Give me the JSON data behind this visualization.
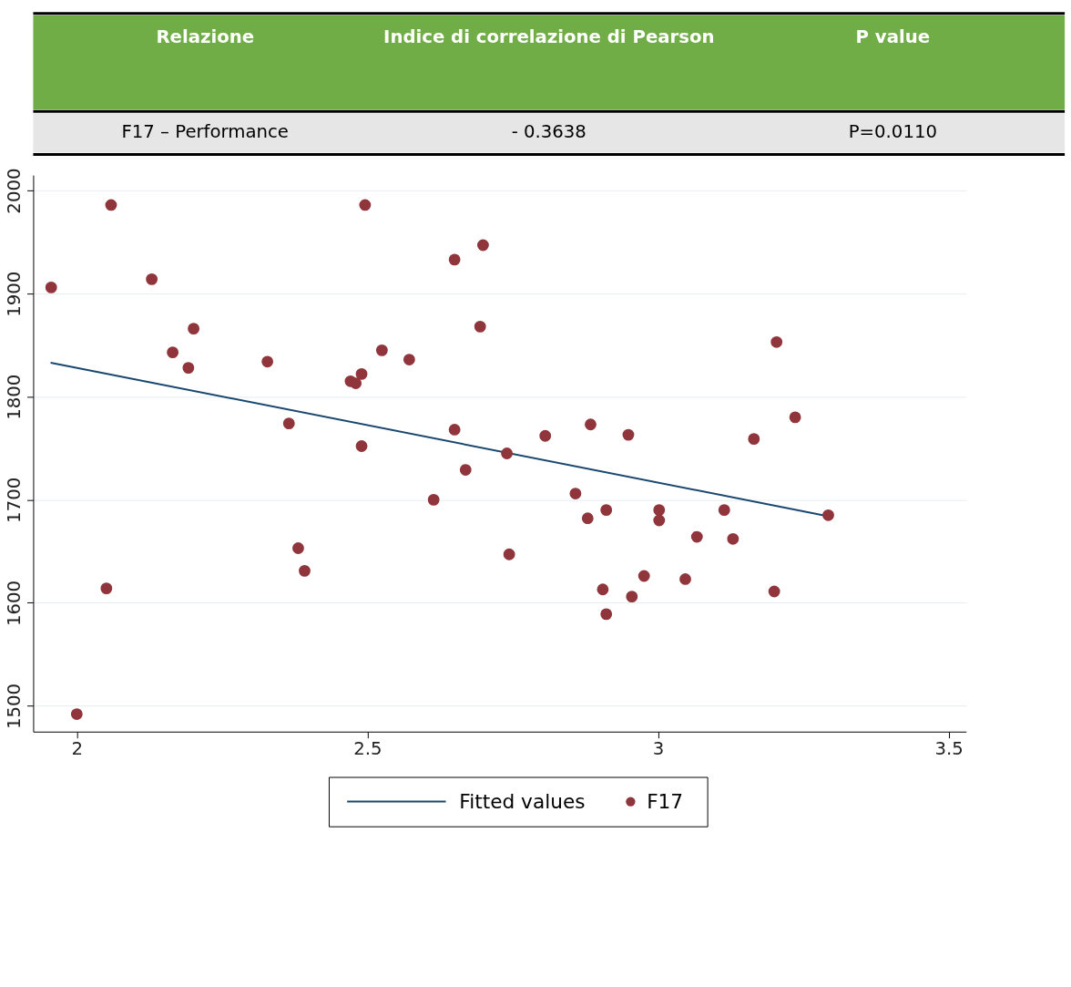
{
  "chart_data": {
    "type": "scatter",
    "annotations": [
      "Relazione",
      "Indice di correlazione di Pearson",
      "P value",
      "F17 – Performance",
      "- 0.3638",
      "P=0.0110"
    ],
    "xlim": [
      1.925,
      3.53
    ],
    "ylim": [
      1475,
      2015
    ],
    "xticks": [
      2,
      2.5,
      3,
      3.5
    ],
    "yticks": [
      1500,
      1600,
      1700,
      1800,
      1900,
      2000
    ],
    "grid": "y",
    "legend": "bottom",
    "series": [
      {
        "name": "Fitted values",
        "type": "line",
        "color": "#1a476f",
        "x": [
          1.955,
          3.293
        ],
        "values": [
          1833,
          1684
        ]
      },
      {
        "name": "F17",
        "color": "#90353b",
        "marker": "circle",
        "x": [
          1.956,
          2.059,
          2.129,
          2.201,
          2.165,
          2.192,
          2.328,
          2.365,
          2.496,
          2.65,
          2.471,
          2.48,
          2.49,
          2.525,
          2.572,
          2.49,
          2.65,
          2.669,
          2.614,
          2.699,
          2.694,
          2.74,
          2.806,
          2.884,
          2.949,
          3.165,
          3.204,
          3.236,
          2.858,
          2.879,
          2.911,
          3.002,
          3.002,
          3.114,
          3.293,
          3.067,
          3.129,
          2.744,
          2.0,
          2.051,
          2.381,
          2.392,
          2.905,
          2.911,
          2.955,
          2.976,
          3.047,
          3.2
        ],
        "values": [
          1906,
          1986,
          1914,
          1866,
          1843,
          1828,
          1834,
          1774,
          1986,
          1933,
          1815,
          1813,
          1822,
          1845,
          1836,
          1752,
          1768,
          1729,
          1700,
          1947,
          1868,
          1745,
          1762,
          1773,
          1763,
          1759,
          1853,
          1780,
          1706,
          1682,
          1690,
          1690,
          1680,
          1690,
          1685,
          1664,
          1662,
          1647,
          1492,
          1614,
          1653,
          1631,
          1613,
          1589,
          1606,
          1626,
          1623,
          1611
        ]
      }
    ]
  }
}
